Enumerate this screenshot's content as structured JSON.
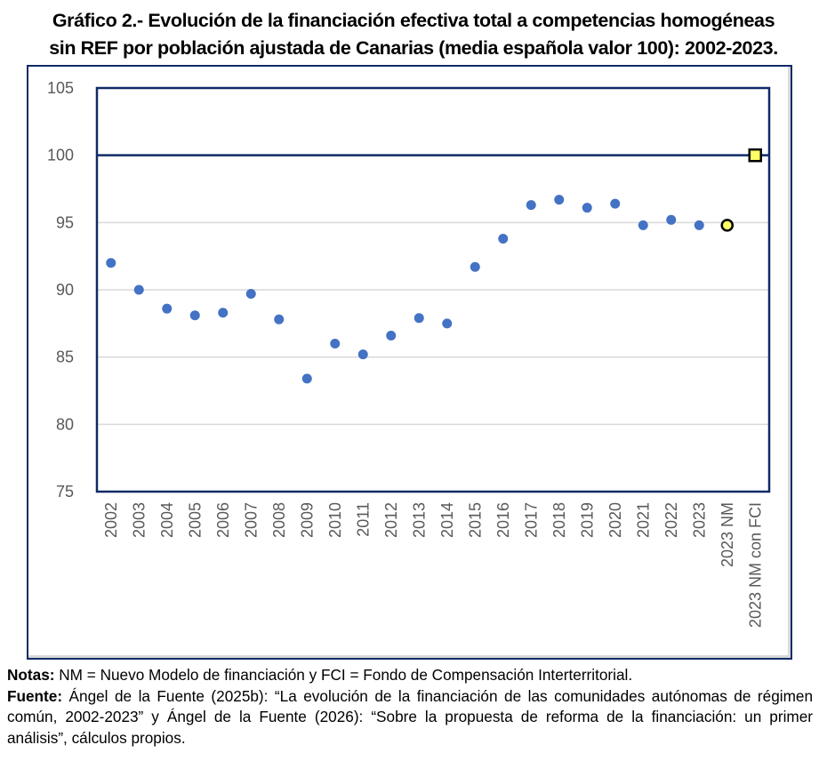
{
  "title": {
    "line1": "Gráfico 2.- Evolución de la financiación efectiva total a competencias homogéneas",
    "line2": "sin REF por población ajustada de Canarias (media española valor 100): 2002-2023."
  },
  "notes": {
    "notas_label": "Notas:",
    "notas_text": " NM = Nuevo Modelo de financiación y FCI = Fondo de Compensación Interterritorial.",
    "fuente_label": "Fuente:",
    "fuente_text": " Ángel de la Fuente (2025b): “La evolución de la financiación de las comunidades autónomas de régimen común, 2002-2023” y Ángel de la Fuente (2026): “Sobre la propuesta de reforma de la financiación: un primer análisis”, cálculos propios."
  },
  "colors": {
    "series": "#4472c4",
    "highlight_fill": "#ffff66",
    "highlight_stroke": "#000000",
    "axis": "#0f2a66",
    "grid": "#d9d9d9",
    "tick_text": "#595959"
  },
  "chart_data": {
    "type": "scatter",
    "title": "Gráfico 2.- Evolución de la financiación efectiva total a competencias homogéneas sin REF por población ajustada de Canarias (media española valor 100): 2002-2023.",
    "xlabel": "",
    "ylabel": "",
    "ylim": [
      75,
      105
    ],
    "yticks": [
      75,
      80,
      85,
      90,
      95,
      100,
      105
    ],
    "reference_line": 100,
    "grid": true,
    "legend": "none",
    "categories": [
      "2002",
      "2003",
      "2004",
      "2005",
      "2006",
      "2007",
      "2008",
      "2009",
      "2010",
      "2011",
      "2012",
      "2013",
      "2014",
      "2015",
      "2016",
      "2017",
      "2018",
      "2019",
      "2020",
      "2021",
      "2022",
      "2023",
      "2023 NM",
      "2023 NM con FCI"
    ],
    "series": [
      {
        "name": "Canarias",
        "marker": "circle",
        "values": [
          92.0,
          90.0,
          88.6,
          88.1,
          88.3,
          89.7,
          87.8,
          83.4,
          86.0,
          85.2,
          86.6,
          87.9,
          87.5,
          91.7,
          93.8,
          96.3,
          96.7,
          96.1,
          96.4,
          94.8,
          95.2,
          94.8,
          null,
          null
        ]
      },
      {
        "name": "2023 NM",
        "marker": "circle-highlight",
        "values": [
          null,
          null,
          null,
          null,
          null,
          null,
          null,
          null,
          null,
          null,
          null,
          null,
          null,
          null,
          null,
          null,
          null,
          null,
          null,
          null,
          null,
          null,
          94.8,
          null
        ]
      },
      {
        "name": "2023 NM con FCI",
        "marker": "square-highlight",
        "values": [
          null,
          null,
          null,
          null,
          null,
          null,
          null,
          null,
          null,
          null,
          null,
          null,
          null,
          null,
          null,
          null,
          null,
          null,
          null,
          null,
          null,
          null,
          null,
          100.0
        ]
      }
    ]
  }
}
